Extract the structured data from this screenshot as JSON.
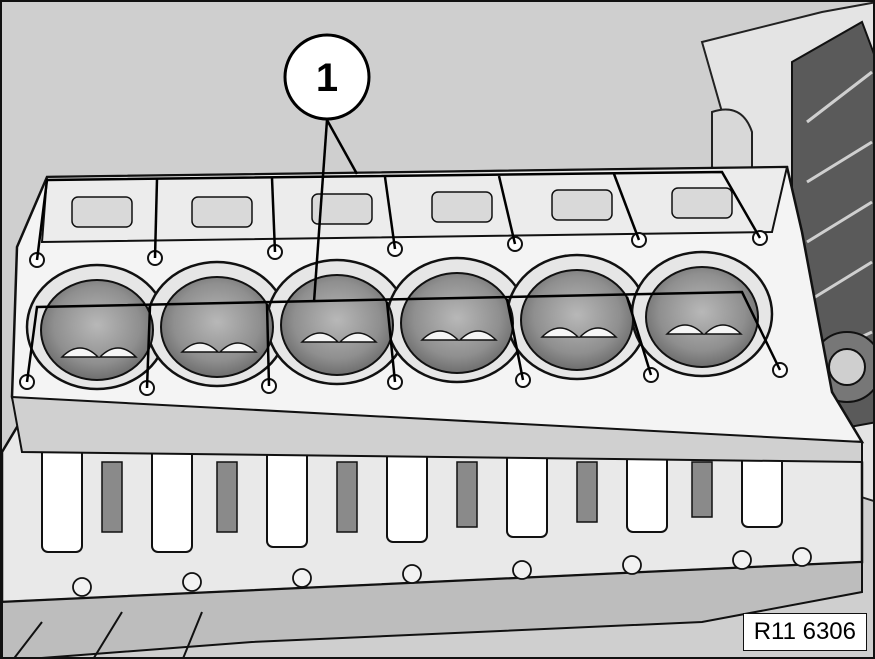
{
  "callout": {
    "number": "1"
  },
  "figure_ref": "R11 6306",
  "colors": {
    "background": "#cfcfcf",
    "metal": "#f2f2f2",
    "shadow": "#9a9a9a",
    "ink": "#000000"
  }
}
